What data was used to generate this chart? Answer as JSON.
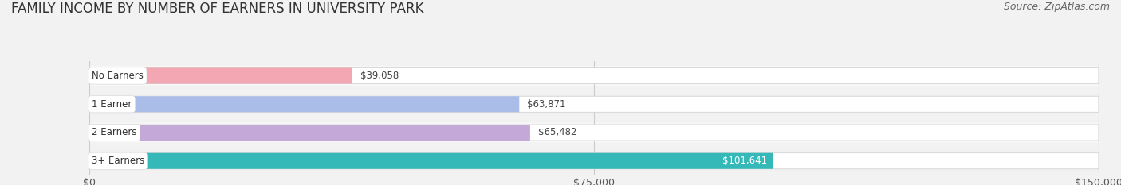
{
  "title": "FAMILY INCOME BY NUMBER OF EARNERS IN UNIVERSITY PARK",
  "source": "Source: ZipAtlas.com",
  "categories": [
    "No Earners",
    "1 Earner",
    "2 Earners",
    "3+ Earners"
  ],
  "values": [
    39058,
    63871,
    65482,
    101641
  ],
  "labels": [
    "$39,058",
    "$63,871",
    "$65,482",
    "$101,641"
  ],
  "bar_colors": [
    "#f2a7b3",
    "#aabde8",
    "#c4a8d8",
    "#35b8b8"
  ],
  "label_colors": [
    "#555555",
    "#555555",
    "#555555",
    "#ffffff"
  ],
  "xlim": [
    0,
    150000
  ],
  "xticks": [
    0,
    75000,
    150000
  ],
  "xticklabels": [
    "$0",
    "$75,000",
    "$150,000"
  ],
  "background_color": "#f2f2f2",
  "bar_bg_color": "#e5e5e5",
  "row_bg_colors": [
    "#f7f7f7",
    "#f0f0f0",
    "#f7f7f7",
    "#f0f0f0"
  ],
  "title_fontsize": 12,
  "source_fontsize": 9,
  "bar_height": 0.62,
  "figsize": [
    14.06,
    2.33
  ]
}
